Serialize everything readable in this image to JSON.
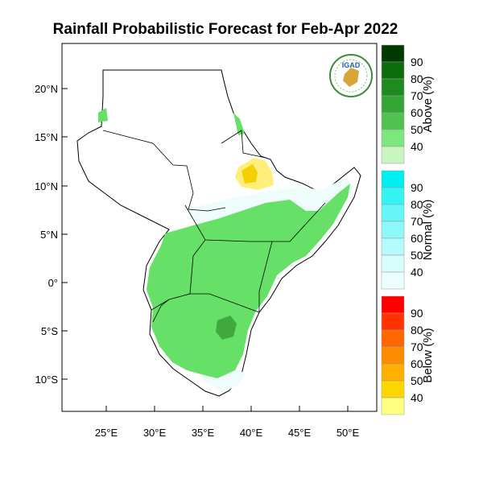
{
  "title": "Rainfall Probabilistic Forecast for Feb-Apr 2022",
  "logo": {
    "text": "IGAD"
  },
  "axes": {
    "lat_labels": [
      "20°N",
      "15°N",
      "10°N",
      "5°N",
      "0°",
      "5°S",
      "10°S"
    ],
    "lon_labels": [
      "25°E",
      "30°E",
      "35°E",
      "40°E",
      "45°E",
      "50°E"
    ]
  },
  "legend": {
    "above": {
      "title": "Above (%)",
      "labels": [
        "90",
        "80",
        "70",
        "60",
        "50",
        "40"
      ],
      "colors": [
        "#003a00",
        "#0b6d0b",
        "#1f8a1f",
        "#33a633",
        "#52c152",
        "#7ee67e",
        "#c6f5c0"
      ]
    },
    "normal": {
      "title": "Normal (%)",
      "labels": [
        "90",
        "80",
        "70",
        "60",
        "50",
        "40"
      ],
      "colors": [
        "#00f0f0",
        "#33f3f3",
        "#66f6f6",
        "#8ff8f8",
        "#b5fbfb",
        "#d8fdfd",
        "#eefefe"
      ]
    },
    "below": {
      "title": "Below (%)",
      "labels": [
        "90",
        "80",
        "70",
        "60",
        "50",
        "40"
      ],
      "colors": [
        "#ff0000",
        "#ff3300",
        "#ff6600",
        "#ff8c00",
        "#ffb000",
        "#ffd700",
        "#ffff80"
      ]
    }
  },
  "colors": {
    "above50": "#66e066",
    "above60": "#3fa83f",
    "normal": "#eefcfc",
    "below40": "#ffef7a",
    "below50": "#f5d000"
  }
}
